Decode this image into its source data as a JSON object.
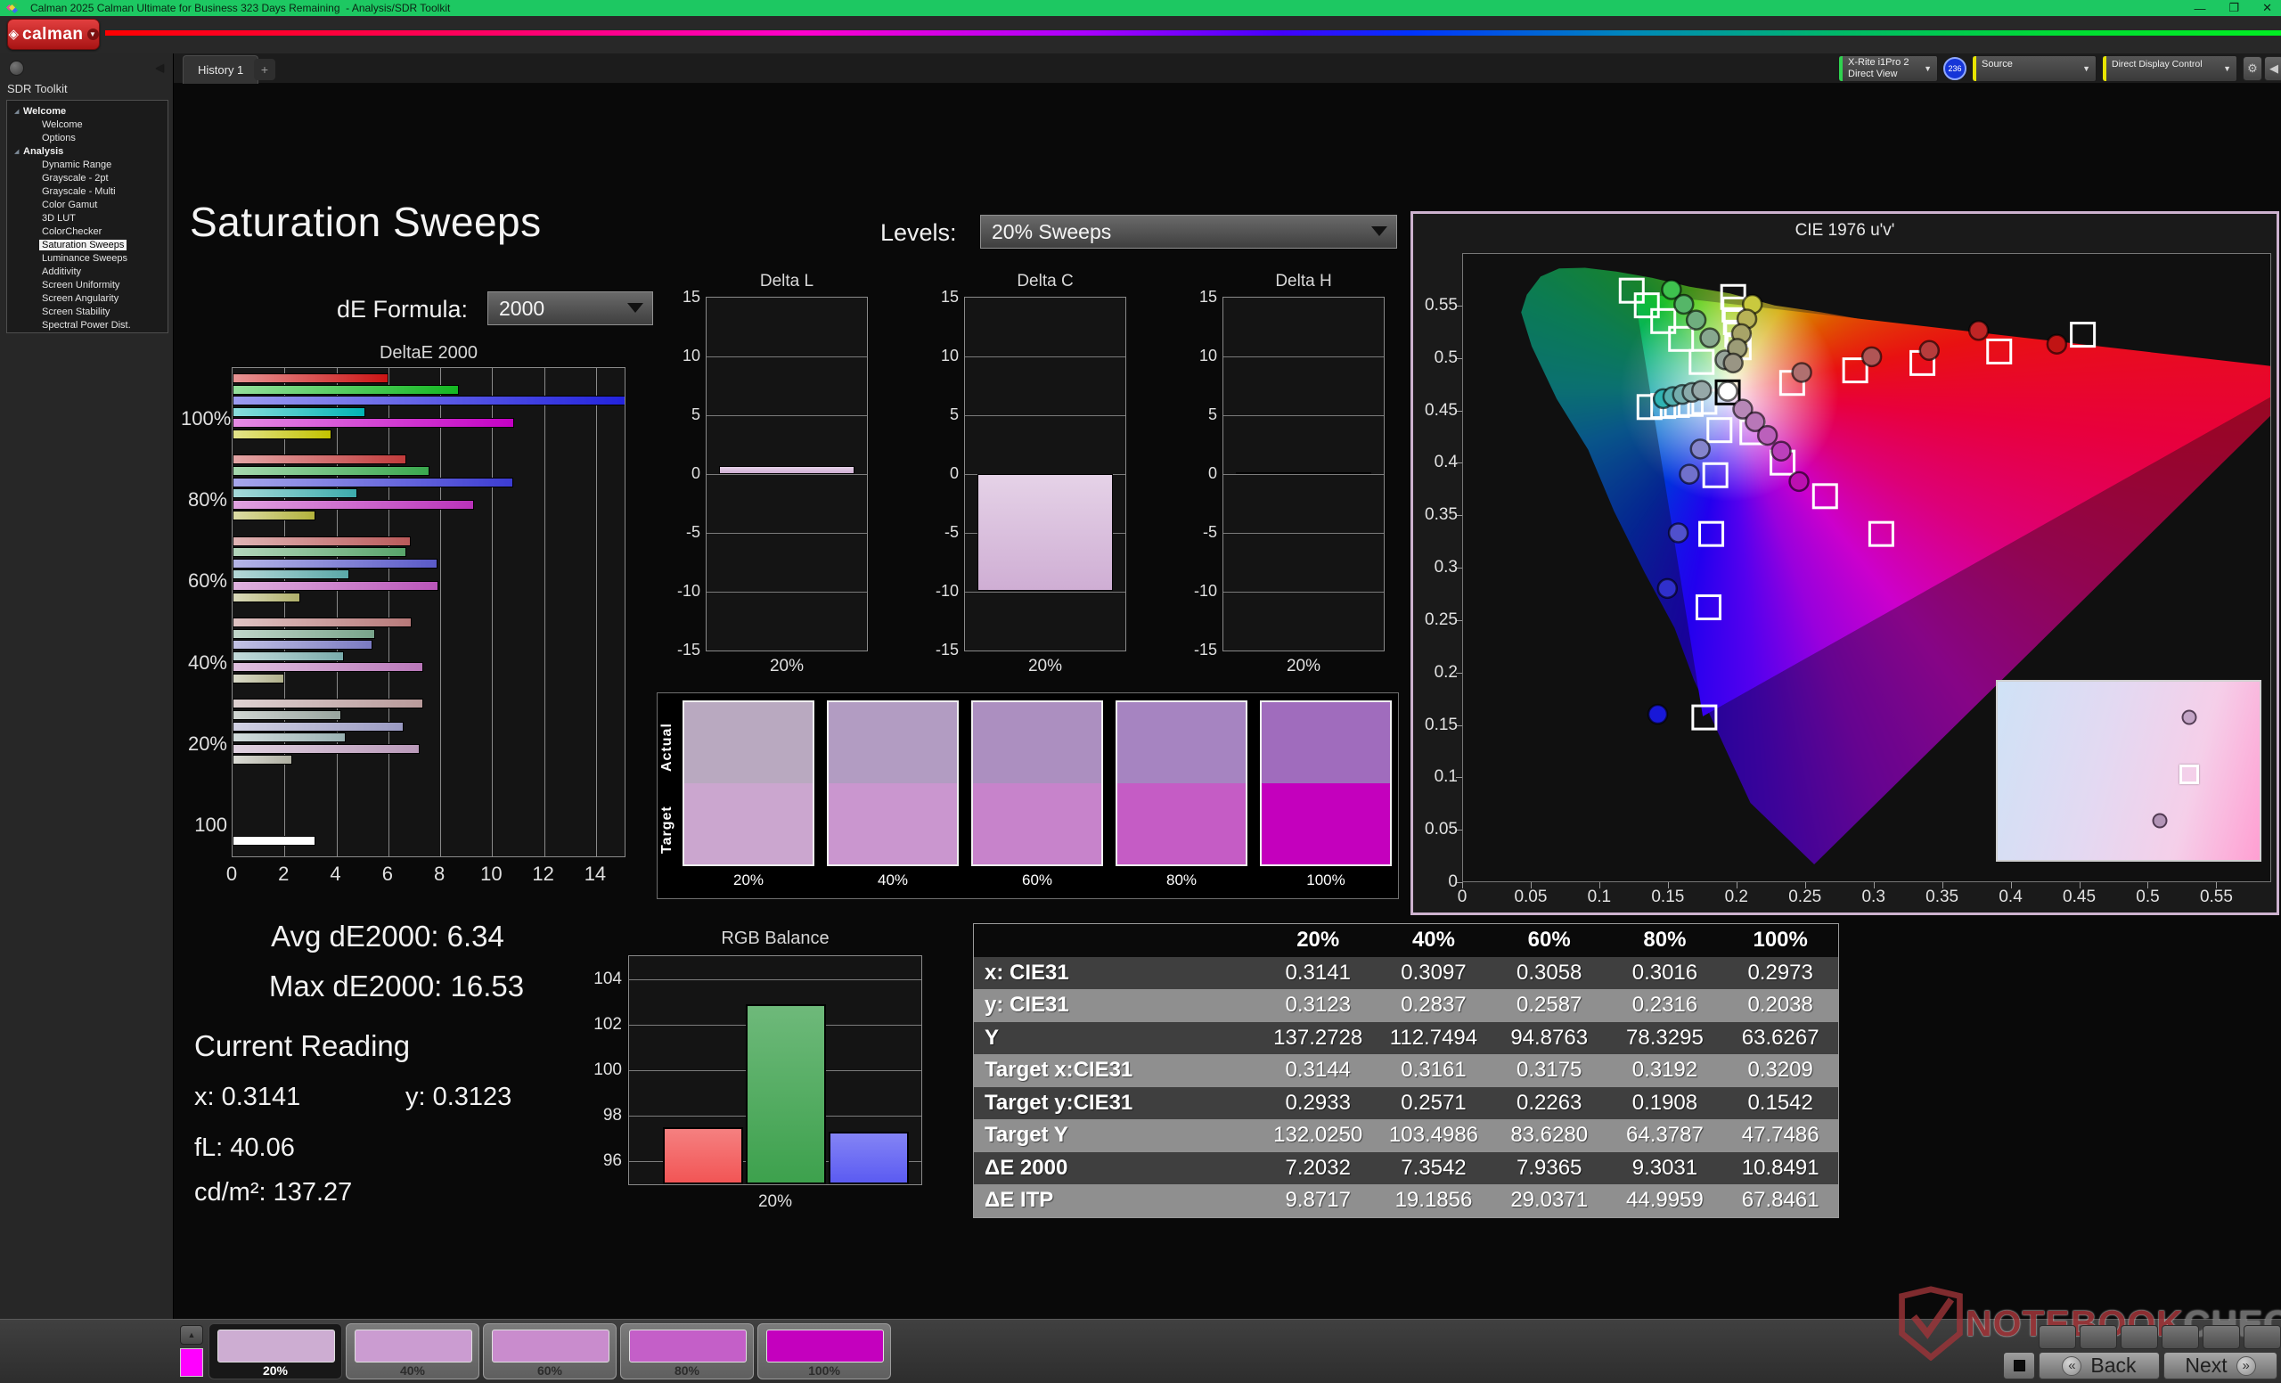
{
  "window": {
    "title": "Calman 2025 Calman Ultimate for Business 323 Days Remaining  - Analysis/SDR Toolkit",
    "minimize": "—",
    "maximize": "❐",
    "close": "✕"
  },
  "logo": {
    "brand": "calman",
    "caret": "▼"
  },
  "tab_bar": {
    "history_tab": "History 1",
    "add_tab": "+"
  },
  "device_bar": {
    "meter_line1": "X-Rite i1Pro 2",
    "meter_line2": "Direct View",
    "meter_color": "#2fd24f",
    "badge": "236",
    "source": "Source",
    "source_color": "#e8e400",
    "display_control": "Direct Display Control",
    "display_color": "#e8e400"
  },
  "sidebar": {
    "header": "SDR Toolkit",
    "tree": [
      {
        "label": "Welcome",
        "level": 0,
        "expander": true
      },
      {
        "label": "Welcome",
        "level": 1
      },
      {
        "label": "Options",
        "level": 1
      },
      {
        "label": "Analysis",
        "level": 0,
        "expander": true
      },
      {
        "label": "Dynamic Range",
        "level": 1
      },
      {
        "label": "Grayscale - 2pt",
        "level": 1
      },
      {
        "label": "Grayscale - Multi",
        "level": 1
      },
      {
        "label": "Color Gamut",
        "level": 1
      },
      {
        "label": "3D LUT",
        "level": 1
      },
      {
        "label": "ColorChecker",
        "level": 1
      },
      {
        "label": "Saturation Sweeps",
        "level": 1,
        "selected": true
      },
      {
        "label": "Luminance Sweeps",
        "level": 1
      },
      {
        "label": "Additivity",
        "level": 1
      },
      {
        "label": "Screen Uniformity",
        "level": 1
      },
      {
        "label": "Screen Angularity",
        "level": 1
      },
      {
        "label": "Screen Stability",
        "level": 1
      },
      {
        "label": "Spectral Power Dist.",
        "level": 1
      }
    ]
  },
  "page": {
    "title": "Saturation Sweeps",
    "de_formula_label": "dE Formula:",
    "de_formula_value": "2000",
    "levels_label": "Levels:",
    "levels_value": "20% Sweeps"
  },
  "stats": {
    "avg": "Avg dE2000: 6.34",
    "max": "Max dE2000: 16.53",
    "current_reading_label": "Current Reading",
    "x": "x: 0.3141",
    "y": "y: 0.3123",
    "fl": "fL: 40.06",
    "cdm2": "cd/m²: 137.27"
  },
  "swatch_panel": {
    "row_labels": [
      "Actual",
      "Target"
    ],
    "columns": [
      {
        "label": "20%",
        "actual": "#b9a9c0",
        "target": "#cba6cf"
      },
      {
        "label": "40%",
        "actual": "#b29cc2",
        "target": "#ca96cf"
      },
      {
        "label": "60%",
        "actual": "#ac8fc0",
        "target": "#c783cb"
      },
      {
        "label": "80%",
        "actual": "#a684c1",
        "target": "#c55cc5"
      },
      {
        "label": "100%",
        "actual": "#a06cbd",
        "target": "#c400bd"
      }
    ]
  },
  "table": {
    "headers": [
      "",
      "20%",
      "40%",
      "60%",
      "80%",
      "100%"
    ],
    "rows": [
      {
        "label": "x: CIE31",
        "values": [
          "0.3141",
          "0.3097",
          "0.3058",
          "0.3016",
          "0.2973"
        ]
      },
      {
        "label": "y: CIE31",
        "values": [
          "0.3123",
          "0.2837",
          "0.2587",
          "0.2316",
          "0.2038"
        ]
      },
      {
        "label": "Y",
        "values": [
          "137.2728",
          "112.7494",
          "94.8763",
          "78.3295",
          "63.6267"
        ]
      },
      {
        "label": "Target x:CIE31",
        "values": [
          "0.3144",
          "0.3161",
          "0.3175",
          "0.3192",
          "0.3209"
        ]
      },
      {
        "label": "Target y:CIE31",
        "values": [
          "0.2933",
          "0.2571",
          "0.2263",
          "0.1908",
          "0.1542"
        ]
      },
      {
        "label": "Target Y",
        "values": [
          "132.0250",
          "103.4986",
          "83.6280",
          "64.3787",
          "47.7486"
        ]
      },
      {
        "label": "ΔE 2000",
        "values": [
          "7.2032",
          "7.3542",
          "7.9365",
          "9.3031",
          "10.8491"
        ]
      },
      {
        "label": "ΔE ITP",
        "values": [
          "9.8717",
          "19.1856",
          "29.0371",
          "44.9959",
          "67.8461"
        ]
      }
    ]
  },
  "thumbnails": {
    "pattern_color": "#ff00ff",
    "items": [
      {
        "label": "20%",
        "color": "#cdadd2",
        "selected": true
      },
      {
        "label": "40%",
        "color": "#cb9cd1",
        "selected": false
      },
      {
        "label": "60%",
        "color": "#c98ccd",
        "selected": false
      },
      {
        "label": "80%",
        "color": "#c45fc8",
        "selected": false
      },
      {
        "label": "100%",
        "color": "#c400be",
        "selected": false
      }
    ]
  },
  "footer": {
    "back": "Back",
    "next": "Next",
    "back_glyph": "«",
    "next_glyph": "»",
    "watermark_red": "NOTEBOOK",
    "watermark_gray": "CHECK"
  },
  "chart_data": [
    {
      "id": "deltae2000",
      "type": "bar",
      "orientation": "horizontal",
      "title": "DeltaE 2000",
      "groups": [
        "100%",
        "80%",
        "60%",
        "40%",
        "20%",
        "100"
      ],
      "series_order": [
        "red",
        "green",
        "blue",
        "cyan",
        "magenta",
        "yellow"
      ],
      "values": {
        "100%": [
          6.0,
          8.7,
          16.53,
          5.1,
          10.85,
          3.8
        ],
        "80%": [
          6.7,
          7.6,
          10.8,
          4.8,
          9.3,
          3.2
        ],
        "60%": [
          6.85,
          6.7,
          7.9,
          4.5,
          7.94,
          2.6
        ],
        "40%": [
          6.9,
          5.5,
          5.4,
          4.3,
          7.35,
          2.0
        ],
        "20%": [
          7.35,
          4.2,
          6.6,
          4.35,
          7.2,
          2.3
        ],
        "100": [
          3.2
        ]
      },
      "colors": {
        "100%": [
          "#cc1414",
          "#14b822",
          "#2222dd",
          "#00b4b4",
          "#c400c4",
          "#c2c200"
        ],
        "80%": [
          "#c23c3c",
          "#3aa84e",
          "#3c3cd2",
          "#3cacac",
          "#ba32ba",
          "#b2b23c"
        ],
        "60%": [
          "#ba5a5a",
          "#58a46a",
          "#5a5ac8",
          "#5aa8a8",
          "#ba55ba",
          "#b0b06a"
        ],
        "40%": [
          "#b87a7a",
          "#78a48a",
          "#7a7ac2",
          "#7aacac",
          "#ba78ba",
          "#b0b08a"
        ],
        "20%": [
          "#b89a9a",
          "#98a49e",
          "#9a9ac2",
          "#9ab2b2",
          "#ba9aba",
          "#b0b0a2"
        ],
        "100": [
          "#ffffff"
        ]
      },
      "xlim": [
        0,
        15.1
      ],
      "xticks": [
        0,
        2,
        4,
        6,
        8,
        10,
        12,
        14
      ],
      "xtick_labels": [
        "0",
        "2",
        "4",
        "6",
        "8",
        "10",
        "12",
        "14"
      ]
    },
    {
      "id": "delta_l",
      "type": "bar",
      "title": "Delta L",
      "category": "20%",
      "value": 0.7,
      "ylim": [
        -15,
        15
      ],
      "ytick_labels": [
        "15",
        "10",
        "5",
        "0",
        "-5",
        "-10",
        "-15"
      ],
      "bar_color": "#cfaed4"
    },
    {
      "id": "delta_c",
      "type": "bar",
      "title": "Delta C",
      "category": "20%",
      "value": -9.9,
      "ylim": [
        -15,
        15
      ],
      "ytick_labels": [
        "15",
        "10",
        "5",
        "0",
        "-5",
        "-10",
        "-15"
      ],
      "bar_color": "#cfaed4"
    },
    {
      "id": "delta_h",
      "type": "bar",
      "title": "Delta H",
      "category": "20%",
      "value": 0.15,
      "ylim": [
        -15,
        15
      ],
      "ytick_labels": [
        "15",
        "10",
        "5",
        "0",
        "-5",
        "-10",
        "-15"
      ],
      "bar_color": "#cfaed4"
    },
    {
      "id": "rgb_balance",
      "type": "bar",
      "title": "RGB Balance",
      "category": "20%",
      "series": [
        {
          "name": "Red",
          "value": 97.5,
          "color": "#f25555"
        },
        {
          "name": "Green",
          "value": 102.9,
          "color": "#3da14d"
        },
        {
          "name": "Blue",
          "value": 97.3,
          "color": "#5b5bf2"
        }
      ],
      "ylim": [
        95,
        105
      ],
      "yticks": [
        96,
        98,
        100,
        102,
        104
      ],
      "ytick_labels": [
        "96",
        "98",
        "100",
        "102",
        "104"
      ]
    },
    {
      "id": "cie1976",
      "type": "scatter",
      "title": "CIE 1976 u'v'",
      "xlim": [
        0,
        0.59
      ],
      "ylim": [
        0,
        0.6
      ],
      "xticks": [
        0,
        0.05,
        0.1,
        0.15,
        0.2,
        0.25,
        0.3,
        0.35,
        0.4,
        0.45,
        0.5,
        0.55
      ],
      "xtick_labels": [
        "0",
        "0.05",
        "0.1",
        "0.15",
        "0.2",
        "0.25",
        "0.3",
        "0.35",
        "0.4",
        "0.45",
        "0.5",
        "0.55"
      ],
      "ytick_labels": [
        "0",
        "0.05",
        "0.1",
        "0.15",
        "0.2",
        "0.25",
        "0.3",
        "0.35",
        "0.4",
        "0.45",
        "0.5",
        "0.55"
      ],
      "targets": [
        [
          0.123,
          0.565
        ],
        [
          0.134,
          0.551
        ],
        [
          0.146,
          0.536
        ],
        [
          0.159,
          0.519
        ],
        [
          0.174,
          0.497
        ],
        [
          0.197,
          0.559
        ],
        [
          0.198,
          0.547
        ],
        [
          0.199,
          0.535
        ],
        [
          0.2,
          0.523
        ],
        [
          0.201,
          0.511
        ],
        [
          0.136,
          0.454
        ],
        [
          0.146,
          0.455
        ],
        [
          0.156,
          0.456
        ],
        [
          0.166,
          0.457
        ],
        [
          0.176,
          0.459
        ],
        [
          0.24,
          0.477
        ],
        [
          0.286,
          0.489
        ],
        [
          0.335,
          0.496
        ],
        [
          0.391,
          0.507
        ],
        [
          0.452,
          0.523
        ],
        [
          0.211,
          0.43
        ],
        [
          0.233,
          0.401
        ],
        [
          0.264,
          0.369
        ],
        [
          0.305,
          0.333
        ],
        [
          0.187,
          0.432
        ],
        [
          0.184,
          0.389
        ],
        [
          0.181,
          0.333
        ],
        [
          0.179,
          0.263
        ],
        [
          0.176,
          0.158
        ]
      ],
      "white_target": [
        0.193,
        0.468
      ],
      "measured": [
        [
          0.152,
          0.566,
          "#3ec24e"
        ],
        [
          0.161,
          0.552,
          "#55b668"
        ],
        [
          0.17,
          0.537,
          "#6fae7e"
        ],
        [
          0.18,
          0.52,
          "#87a88f"
        ],
        [
          0.191,
          0.499,
          "#97a49b"
        ],
        [
          0.211,
          0.552,
          "#c9c93e"
        ],
        [
          0.207,
          0.538,
          "#b8b356"
        ],
        [
          0.203,
          0.524,
          "#a8a468"
        ],
        [
          0.2,
          0.51,
          "#9c9c77"
        ],
        [
          0.197,
          0.496,
          "#999584"
        ],
        [
          0.146,
          0.462,
          "#2fb3b3"
        ],
        [
          0.153,
          0.464,
          "#55b0b0"
        ],
        [
          0.16,
          0.466,
          "#74adad"
        ],
        [
          0.167,
          0.468,
          "#8aabab"
        ],
        [
          0.174,
          0.47,
          "#96a8a8"
        ],
        [
          0.247,
          0.487,
          "#b07070"
        ],
        [
          0.298,
          0.502,
          "#b05555"
        ],
        [
          0.34,
          0.508,
          "#b83c3c"
        ],
        [
          0.376,
          0.527,
          "#c02525"
        ],
        [
          0.433,
          0.514,
          "#c01414"
        ],
        [
          0.204,
          0.452,
          "#b787b7"
        ],
        [
          0.213,
          0.44,
          "#b877b8"
        ],
        [
          0.222,
          0.427,
          "#bb60bb"
        ],
        [
          0.232,
          0.412,
          "#bb40bb"
        ],
        [
          0.245,
          0.383,
          "#bb10b0"
        ],
        [
          0.173,
          0.414,
          "#8585cc"
        ],
        [
          0.165,
          0.39,
          "#7070cc"
        ],
        [
          0.157,
          0.334,
          "#5050cc"
        ],
        [
          0.149,
          0.281,
          "#3030cc"
        ],
        [
          0.142,
          0.161,
          "#1818d8"
        ]
      ],
      "white_measured": [
        0.193,
        0.469
      ],
      "inset_markers": [
        {
          "type": "circle",
          "x": 0.73,
          "y": 0.2,
          "color": "#c3a4c6"
        },
        {
          "type": "square",
          "x": 0.73,
          "y": 0.52
        },
        {
          "type": "circle",
          "x": 0.62,
          "y": 0.78,
          "color": "#b294b6"
        }
      ]
    }
  ]
}
